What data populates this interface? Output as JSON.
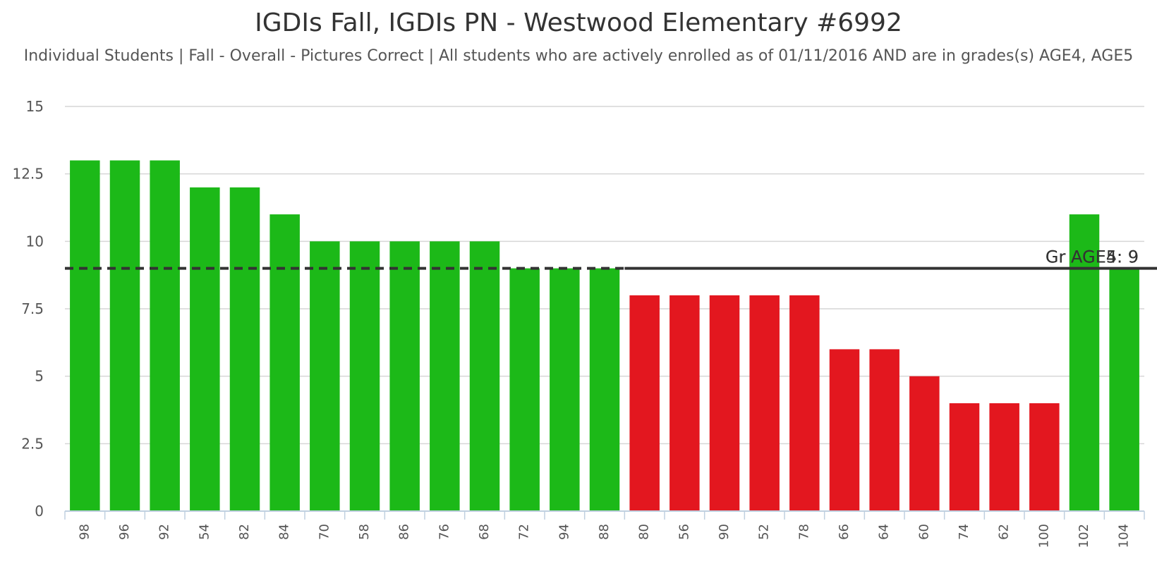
{
  "chart_data": {
    "type": "bar",
    "title": "IGDIs Fall, IGDIs PN - Westwood Elementary #6992",
    "subtitle": "Individual Students | Fall - Overall - Pictures Correct | All students who are actively enrolled as of 01/11/2016 AND are in grades(s) AGE4, AGE5",
    "xlabel": "",
    "ylabel": "",
    "ylim": [
      0,
      15
    ],
    "yticks": [
      0,
      2.5,
      5,
      7.5,
      10,
      12.5,
      15
    ],
    "ytick_labels": [
      "0",
      "2.5",
      "5",
      "7.5",
      "10",
      "12.5",
      "15"
    ],
    "grid": true,
    "categories": [
      "98",
      "96",
      "92",
      "54",
      "82",
      "84",
      "70",
      "58",
      "86",
      "76",
      "68",
      "72",
      "94",
      "88",
      "80",
      "56",
      "90",
      "52",
      "78",
      "66",
      "64",
      "60",
      "74",
      "62",
      "100",
      "102",
      "104"
    ],
    "values": [
      13,
      13,
      13,
      12,
      12,
      11,
      10,
      10,
      10,
      10,
      10,
      9,
      9,
      9,
      8,
      8,
      8,
      8,
      8,
      6,
      6,
      5,
      4,
      4,
      4,
      11,
      9
    ],
    "colors": {
      "above_benchmark": "#1cb918",
      "below_benchmark": "#e3171f",
      "reference_line": "#333333",
      "grid": "#d6d6d6",
      "axis": "#c0d0e0"
    },
    "reference_lines": [
      {
        "label": "Gr AGE4: 9",
        "value": 9,
        "style": "dashed",
        "from_category": 0,
        "to_category": 13
      },
      {
        "label": "Gr AGE5: 9",
        "value": 9,
        "style": "solid",
        "from_category": 14,
        "to_category": 26
      }
    ]
  }
}
